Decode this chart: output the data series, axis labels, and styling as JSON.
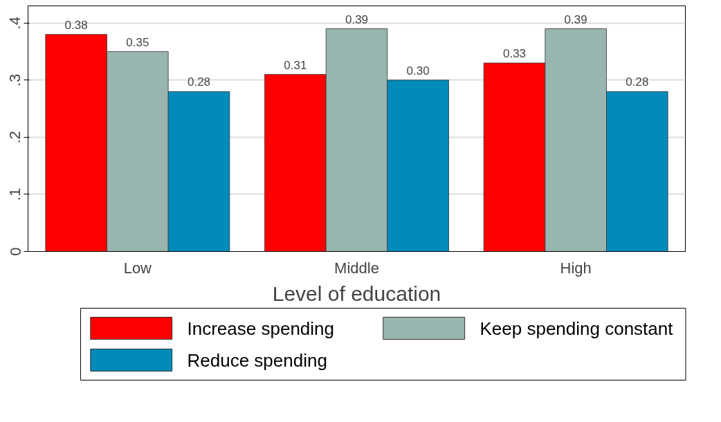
{
  "chart_data": {
    "type": "bar",
    "xlabel": "Level of education",
    "categories": [
      "Low",
      "Middle",
      "High"
    ],
    "series": [
      {
        "name": "Increase spending",
        "color": "#ff0000",
        "values": [
          0.38,
          0.31,
          0.33
        ],
        "value_labels": [
          "0.38",
          "0.31",
          "0.33"
        ]
      },
      {
        "name": "Keep spending constant",
        "color": "#98b5b0",
        "values": [
          0.35,
          0.39,
          0.39
        ],
        "value_labels": [
          "0.35",
          "0.39",
          "0.39"
        ]
      },
      {
        "name": "Reduce spending",
        "color": "#008bbb",
        "values": [
          0.28,
          0.3,
          0.28
        ],
        "value_labels": [
          "0.28",
          "0.30",
          "0.28"
        ]
      }
    ],
    "ylim": [
      0,
      0.43
    ],
    "yticks": [
      {
        "value": 0,
        "label": "0"
      },
      {
        "value": 0.1,
        "label": ".1"
      },
      {
        "value": 0.2,
        "label": ".2"
      },
      {
        "value": 0.3,
        "label": ".3"
      },
      {
        "value": 0.4,
        "label": ".4"
      }
    ],
    "grid": "y",
    "legend": "bottom"
  }
}
